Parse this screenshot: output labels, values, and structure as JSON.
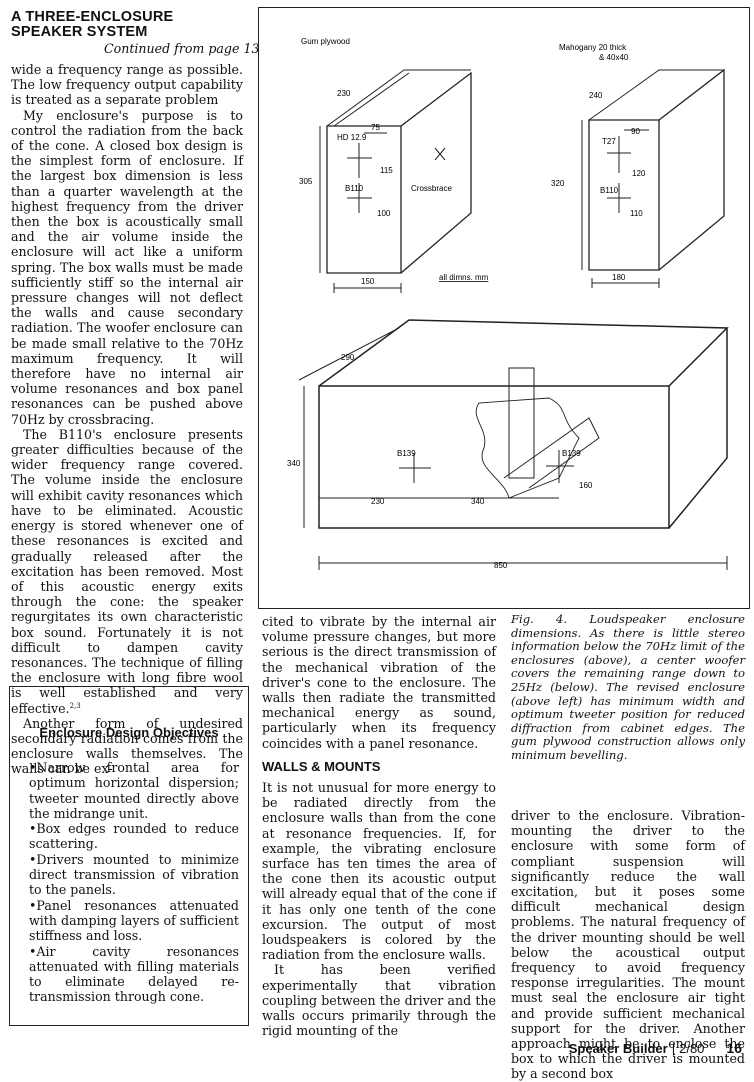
{
  "article": {
    "title_line1": "A THREE-ENCLOSURE",
    "title_line2": "SPEAKER SYSTEM",
    "continued": "Continued from page 13"
  },
  "col1": {
    "p1": "wide a frequency range as possible. The low frequency output capability is treated as a separate problem",
    "p2": "My enclosure's purpose is to control the radiation from the back of the cone. A closed box design is the simplest form of enclosure. If the largest box dimension is less than a quarter wavelength at the highest frequency from the driver then the box is acoustically small and the air volume inside the enclosure will act like a uniform spring. The box walls must be made sufficiently stiff so the internal air pressure changes will not deflect the walls and cause secondary radiation. The woofer enclosure can be made small relative to the 70Hz maximum frequency. It will therefore have no internal air volume resonances and box panel resonances can be pushed above 70Hz by crossbracing.",
    "p3": "The B110's enclosure presents greater difficulties because of the wider frequency range covered. The volume inside the enclosure will exhibit cavity resonances which have to be eliminated. Acoustic energy is stored whenever one of these resonances is excited and gradually released after the excitation has been removed. Most of this acoustic energy exits through the cone: the speaker regurgitates its own characteristic box sound. Fortunately it is not difficult to dampen cavity resonances. The technique of filling the enclosure with long fibre wool is well established and very effective.",
    "p3_sup": "2,3",
    "p4": "Another form of undesired secondary radiation comes from the enclosure walls themselves. The walls can be ex-"
  },
  "sidebar": {
    "title": "Enclosure Design Objectives",
    "items": [
      "•Narrow frontal area for optimum horizontal dispersion; tweeter mounted directly above the midrange unit.",
      "•Box edges rounded to reduce scattering.",
      "•Drivers mounted to minimize direct transmission of vibration to the panels.",
      "•Panel resonances attenuated with damping layers of sufficient stiffness and loss.",
      "•Air cavity resonances attenuated with filling materials to eliminate delayed re-transmission through cone."
    ]
  },
  "figure": {
    "labels": {
      "gum": "Gum plywood",
      "mahogany1": "Mahogany  20 thick",
      "mahogany2": "& 40x40",
      "d230": "230",
      "d240": "240",
      "hd": "HD 12.9",
      "d75": "75",
      "d90": "90",
      "t27": "T27",
      "d115": "115",
      "d120": "120",
      "d305": "305",
      "d320": "320",
      "b110a": "B110",
      "b110b": "B110",
      "d100": "100",
      "d110": "110",
      "crossbrace": "Crossbrace",
      "d150": "150",
      "d180": "180",
      "dims": "all dimns. mm",
      "d290": "290",
      "d340v": "340",
      "b139a": "B139",
      "b139b": "B139",
      "d160": "160",
      "d230b": "230",
      "d340h": "340",
      "d850": "850"
    }
  },
  "caption": "Fig. 4. Loudspeaker enclosure dimensions. As there is little stereo information below the 70Hz limit of the enclosures (above), a center woofer covers the remaining range down to 25Hz (below). The revised enclosure (above left) has minimum width and optimum tweeter position for reduced diffraction from cabinet edges. The gum plywood construction allows only minimum bevelling.",
  "col2": {
    "p1": "cited to vibrate by the internal air volume pressure changes, but more serious is the direct transmission of the mechanical vibration of the driver's cone to the enclosure. The walls then radiate the transmitted mechanical energy as sound, particularly when its frequency coincides with a panel resonance.",
    "heading": "WALLS & MOUNTS",
    "p2": "It is not unusual for more energy to be radiated directly from the enclosure walls than from the cone at resonance frequencies. If, for example, the vibrating enclosure surface has ten times the area of the cone then its acoustic output will already equal that of the cone if it has only one tenth of the cone excursion. The output of most loudspeakers is colored by the radiation from the enclosure walls.",
    "p3": "It has been verified experimentally that vibration coupling between the driver and the walls occurs primarily through the rigid mounting of the"
  },
  "col3": {
    "p1": "driver to the enclosure. Vibration-mounting the driver to the enclosure with some form of compliant suspension will significantly reduce the wall excitation, but it poses some difficult mechanical design problems. The natural frequency of the driver mounting should be well below the acoustical output frequency to avoid frequency response irregularities. The mount must seal the enclosure air tight and provide sufficient mechanical support for the driver. Another approach might be to enclose the box to which the driver is mounted by a second box"
  },
  "footer": {
    "magazine": "Speaker Builder",
    "issue": "2/80",
    "page": "16"
  }
}
